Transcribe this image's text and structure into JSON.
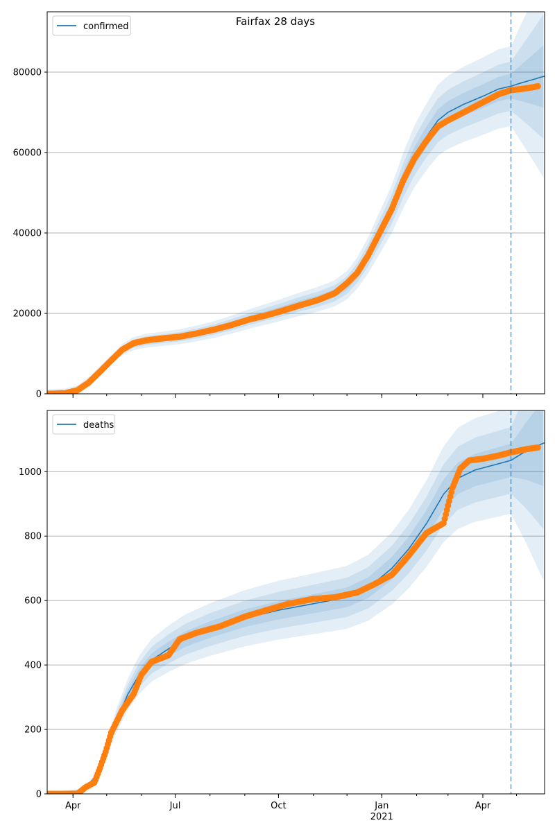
{
  "figure": {
    "title": "Fairfax 28 days"
  },
  "colors": {
    "model": "#1f77b4",
    "observed": "#ff7f0e",
    "band": "#1f77b4",
    "grid": "#b0b0b0"
  },
  "chart_data": [
    {
      "type": "line",
      "legend": [
        "confirmed"
      ],
      "legend_position": "top-left",
      "grid": "horizontal",
      "x_axis": {
        "type": "date",
        "range": [
          "2020-03-09",
          "2021-05-26"
        ],
        "tick_labels": [
          "Apr",
          "Jul",
          "Oct",
          "Jan",
          "Apr"
        ],
        "tick_dates": [
          "2020-04-01",
          "2020-07-01",
          "2020-10-01",
          "2021-01-01",
          "2021-04-01"
        ],
        "year_label": "2021"
      },
      "y_axis": {
        "range": [
          0,
          95000
        ],
        "ticks": [
          0,
          20000,
          40000,
          60000,
          80000
        ],
        "tick_labels": [
          "0",
          "20000",
          "40000",
          "60000",
          "80000"
        ]
      },
      "forecast_start": "2021-04-26",
      "series": [
        {
          "name": "confirmed",
          "kind": "model",
          "points": [
            [
              "2020-03-09",
              0
            ],
            [
              "2020-03-25",
              200
            ],
            [
              "2020-04-05",
              1000
            ],
            [
              "2020-04-15",
              3000
            ],
            [
              "2020-04-25",
              5800
            ],
            [
              "2020-05-05",
              8500
            ],
            [
              "2020-05-15",
              11000
            ],
            [
              "2020-05-25",
              12500
            ],
            [
              "2020-06-05",
              13200
            ],
            [
              "2020-06-20",
              13700
            ],
            [
              "2020-07-05",
              14200
            ],
            [
              "2020-07-20",
              15000
            ],
            [
              "2020-08-05",
              16000
            ],
            [
              "2020-08-20",
              17200
            ],
            [
              "2020-09-05",
              18600
            ],
            [
              "2020-09-20",
              19800
            ],
            [
              "2020-10-05",
              21000
            ],
            [
              "2020-10-20",
              22300
            ],
            [
              "2020-11-05",
              23500
            ],
            [
              "2020-11-20",
              25000
            ],
            [
              "2020-12-01",
              27000
            ],
            [
              "2020-12-10",
              30000
            ],
            [
              "2020-12-20",
              34500
            ],
            [
              "2020-12-30",
              40000
            ],
            [
              "2021-01-10",
              46000
            ],
            [
              "2021-01-20",
              53000
            ],
            [
              "2021-01-30",
              59000
            ],
            [
              "2021-02-10",
              64000
            ],
            [
              "2021-02-20",
              68000
            ],
            [
              "2021-03-01",
              70000
            ],
            [
              "2021-03-15",
              72000
            ],
            [
              "2021-04-01",
              74000
            ],
            [
              "2021-04-15",
              75800
            ],
            [
              "2021-04-26",
              76500
            ],
            [
              "2021-05-05",
              77300
            ],
            [
              "2021-05-15",
              78100
            ],
            [
              "2021-05-26",
              79000
            ]
          ]
        },
        {
          "name": "observed",
          "kind": "observed",
          "points": [
            [
              "2020-03-09",
              0
            ],
            [
              "2020-03-25",
              150
            ],
            [
              "2020-04-05",
              900
            ],
            [
              "2020-04-15",
              2800
            ],
            [
              "2020-04-25",
              5500
            ],
            [
              "2020-05-05",
              8300
            ],
            [
              "2020-05-15",
              11000
            ],
            [
              "2020-05-25",
              12600
            ],
            [
              "2020-06-05",
              13300
            ],
            [
              "2020-06-20",
              13800
            ],
            [
              "2020-07-05",
              14200
            ],
            [
              "2020-07-20",
              15000
            ],
            [
              "2020-08-05",
              16000
            ],
            [
              "2020-08-20",
              17100
            ],
            [
              "2020-09-05",
              18500
            ],
            [
              "2020-09-20",
              19500
            ],
            [
              "2020-10-05",
              20700
            ],
            [
              "2020-10-20",
              22000
            ],
            [
              "2020-11-05",
              23300
            ],
            [
              "2020-11-20",
              25000
            ],
            [
              "2020-12-01",
              27500
            ],
            [
              "2020-12-10",
              30000
            ],
            [
              "2020-12-20",
              34500
            ],
            [
              "2020-12-30",
              40000
            ],
            [
              "2021-01-10",
              46000
            ],
            [
              "2021-01-20",
              53000
            ],
            [
              "2021-01-30",
              58500
            ],
            [
              "2021-02-10",
              63000
            ],
            [
              "2021-02-20",
              66500
            ],
            [
              "2021-03-01",
              68000
            ],
            [
              "2021-03-15",
              70000
            ],
            [
              "2021-04-01",
              72500
            ],
            [
              "2021-04-15",
              74500
            ],
            [
              "2021-04-26",
              75500
            ],
            [
              "2021-05-05",
              75800
            ],
            [
              "2021-05-15",
              76200
            ],
            [
              "2021-05-20",
              76500
            ]
          ]
        }
      ],
      "band_widths_relative": [
        0.04,
        0.08,
        0.13
      ],
      "band_minimum_widths": [
        300,
        700,
        1100
      ]
    },
    {
      "type": "line",
      "legend": [
        "deaths"
      ],
      "legend_position": "top-left",
      "grid": "horizontal",
      "x_axis": {
        "type": "date",
        "range": [
          "2020-03-09",
          "2021-05-26"
        ],
        "tick_labels": [
          "Apr",
          "Jul",
          "Oct",
          "Jan",
          "Apr"
        ],
        "tick_dates": [
          "2020-04-01",
          "2020-07-01",
          "2020-10-01",
          "2021-01-01",
          "2021-04-01"
        ],
        "year_label": "2021"
      },
      "y_axis": {
        "range": [
          0,
          1190
        ],
        "ticks": [
          0,
          200,
          400,
          600,
          800,
          1000
        ],
        "tick_labels": [
          "0",
          "200",
          "400",
          "600",
          "800",
          "1000"
        ]
      },
      "forecast_start": "2021-04-26",
      "series": [
        {
          "name": "deaths",
          "kind": "model",
          "points": [
            [
              "2020-03-09",
              0
            ],
            [
              "2020-04-10",
              10
            ],
            [
              "2020-04-20",
              50
            ],
            [
              "2020-04-30",
              130
            ],
            [
              "2020-05-10",
              230
            ],
            [
              "2020-05-20",
              310
            ],
            [
              "2020-05-30",
              370
            ],
            [
              "2020-06-10",
              415
            ],
            [
              "2020-06-25",
              450
            ],
            [
              "2020-07-10",
              480
            ],
            [
              "2020-08-01",
              510
            ],
            [
              "2020-09-01",
              545
            ],
            [
              "2020-10-01",
              570
            ],
            [
              "2020-11-01",
              590
            ],
            [
              "2020-12-01",
              610
            ],
            [
              "2020-12-20",
              640
            ],
            [
              "2021-01-10",
              700
            ],
            [
              "2021-01-25",
              760
            ],
            [
              "2021-02-10",
              840
            ],
            [
              "2021-02-25",
              930
            ],
            [
              "2021-03-10",
              980
            ],
            [
              "2021-03-25",
              1005
            ],
            [
              "2021-04-10",
              1020
            ],
            [
              "2021-04-26",
              1035
            ],
            [
              "2021-05-10",
              1065
            ],
            [
              "2021-05-26",
              1090
            ]
          ]
        },
        {
          "name": "observed",
          "kind": "observed",
          "points": [
            [
              "2020-03-09",
              0
            ],
            [
              "2020-04-05",
              0
            ],
            [
              "2020-04-12",
              20
            ],
            [
              "2020-04-20",
              35
            ],
            [
              "2020-04-25",
              80
            ],
            [
              "2020-04-30",
              130
            ],
            [
              "2020-05-05",
              190
            ],
            [
              "2020-05-15",
              260
            ],
            [
              "2020-05-25",
              310
            ],
            [
              "2020-06-01",
              370
            ],
            [
              "2020-06-10",
              410
            ],
            [
              "2020-06-25",
              430
            ],
            [
              "2020-07-05",
              480
            ],
            [
              "2020-07-20",
              500
            ],
            [
              "2020-08-10",
              520
            ],
            [
              "2020-09-01",
              550
            ],
            [
              "2020-09-20",
              570
            ],
            [
              "2020-10-10",
              590
            ],
            [
              "2020-11-01",
              605
            ],
            [
              "2020-11-20",
              610
            ],
            [
              "2020-12-10",
              625
            ],
            [
              "2020-12-25",
              650
            ],
            [
              "2021-01-10",
              680
            ],
            [
              "2021-01-25",
              740
            ],
            [
              "2021-02-10",
              810
            ],
            [
              "2021-02-25",
              840
            ],
            [
              "2021-03-05",
              950
            ],
            [
              "2021-03-12",
              1010
            ],
            [
              "2021-03-20",
              1035
            ],
            [
              "2021-04-01",
              1040
            ],
            [
              "2021-04-15",
              1050
            ],
            [
              "2021-04-26",
              1060
            ],
            [
              "2021-05-10",
              1070
            ],
            [
              "2021-05-20",
              1075
            ]
          ]
        }
      ],
      "band_widths_relative": [
        0.05,
        0.1,
        0.16
      ],
      "band_minimum_widths": [
        2,
        4,
        6
      ]
    }
  ]
}
